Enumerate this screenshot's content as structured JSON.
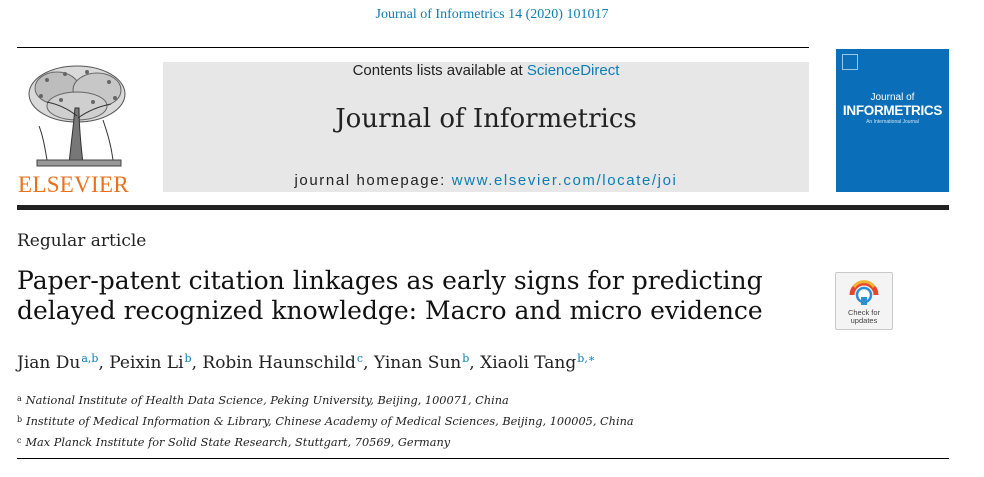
{
  "header": {
    "journal_ref": "Journal of Informetrics 14 (2020) 101017",
    "contents_prefix": "Contents lists available at ",
    "contents_link": "ScienceDirect",
    "journal_title": "Journal of Informetrics",
    "homepage_prefix": "journal homepage: ",
    "homepage_link": "www.elsevier.com/locate/joi",
    "publisher": "ELSEVIER"
  },
  "cover": {
    "line1": "Journal of",
    "line2": "INFORMETRICS",
    "line3": "An International Journal"
  },
  "check_for_updates": {
    "line1": "Check for",
    "line2": "updates"
  },
  "article": {
    "type": "Regular article",
    "title_line1": "Paper-patent citation linkages as early signs for predicting",
    "title_line2": "delayed recognized knowledge: Macro and micro evidence"
  },
  "authors": [
    {
      "name": "Jian Du",
      "sup": "a,b"
    },
    {
      "name": "Peixin Li",
      "sup": "b"
    },
    {
      "name": "Robin Haunschild",
      "sup": "c"
    },
    {
      "name": "Yinan Sun",
      "sup": "b"
    },
    {
      "name": "Xiaoli Tang",
      "sup": "b,∗"
    }
  ],
  "affiliations": [
    {
      "mark": "a",
      "text": "National Institute of Health Data Science, Peking University, Beijing, 100071, China"
    },
    {
      "mark": "b",
      "text": "Institute of Medical Information & Library, Chinese Academy of Medical Sciences, Beijing, 100005, China"
    },
    {
      "mark": "c",
      "text": "Max Planck Institute for Solid State Research, Stuttgart, 70569, Germany"
    }
  ],
  "colors": {
    "link": "#0c7db3",
    "elsevier_orange": "#e9711c",
    "cover_blue": "#0a6fb8",
    "banner_gray": "#e7e7e7"
  }
}
